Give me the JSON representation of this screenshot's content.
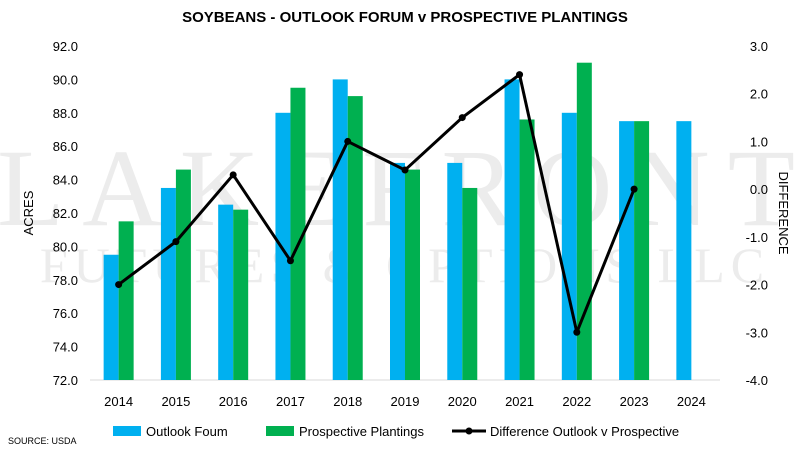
{
  "chart_data": {
    "type": "bar",
    "title": "SOYBEANS - OUTLOOK FORUM  v PROSPECTIVE PLANTINGS",
    "categories": [
      "2014",
      "2015",
      "2016",
      "2017",
      "2018",
      "2019",
      "2020",
      "2021",
      "2022",
      "2023",
      "2024"
    ],
    "series": [
      {
        "name": "Outlook Foum",
        "type": "bar",
        "axis": "left",
        "color": "#00b0f0",
        "values": [
          79.5,
          83.5,
          82.5,
          88.0,
          90.0,
          85.0,
          85.0,
          90.0,
          88.0,
          87.5,
          87.5
        ]
      },
      {
        "name": "Prospective Plantings",
        "type": "bar",
        "axis": "left",
        "color": "#00b050",
        "values": [
          81.5,
          84.6,
          82.2,
          89.5,
          89.0,
          84.6,
          83.5,
          87.6,
          91.0,
          87.5,
          null
        ]
      },
      {
        "name": "Difference Outlook v Prospective",
        "type": "line",
        "axis": "right",
        "color": "#000000",
        "values": [
          -2.0,
          -1.1,
          0.3,
          -1.5,
          1.0,
          0.4,
          1.5,
          2.4,
          -3.0,
          0.0,
          null
        ]
      }
    ],
    "ylabel": "ACRES",
    "y2label": "DIFFERENCE",
    "ylim": [
      72.0,
      92.0
    ],
    "y2lim": [
      -4.0,
      3.0
    ],
    "yticks": [
      "92.0",
      "90.0",
      "88.0",
      "86.0",
      "84.0",
      "82.0",
      "80.0",
      "78.0",
      "76.0",
      "74.0",
      "72.0"
    ],
    "y2ticks": [
      "3.0",
      "2.0",
      "1.0",
      "0.0",
      "-1.0",
      "-2.0",
      "-3.0",
      "-4.0"
    ],
    "legend_position": "bottom"
  },
  "source": "SOURCE: USDA",
  "watermark": {
    "line1": "LAKEFRONT",
    "line2": "FUTURES & OPTIONS LLC"
  }
}
